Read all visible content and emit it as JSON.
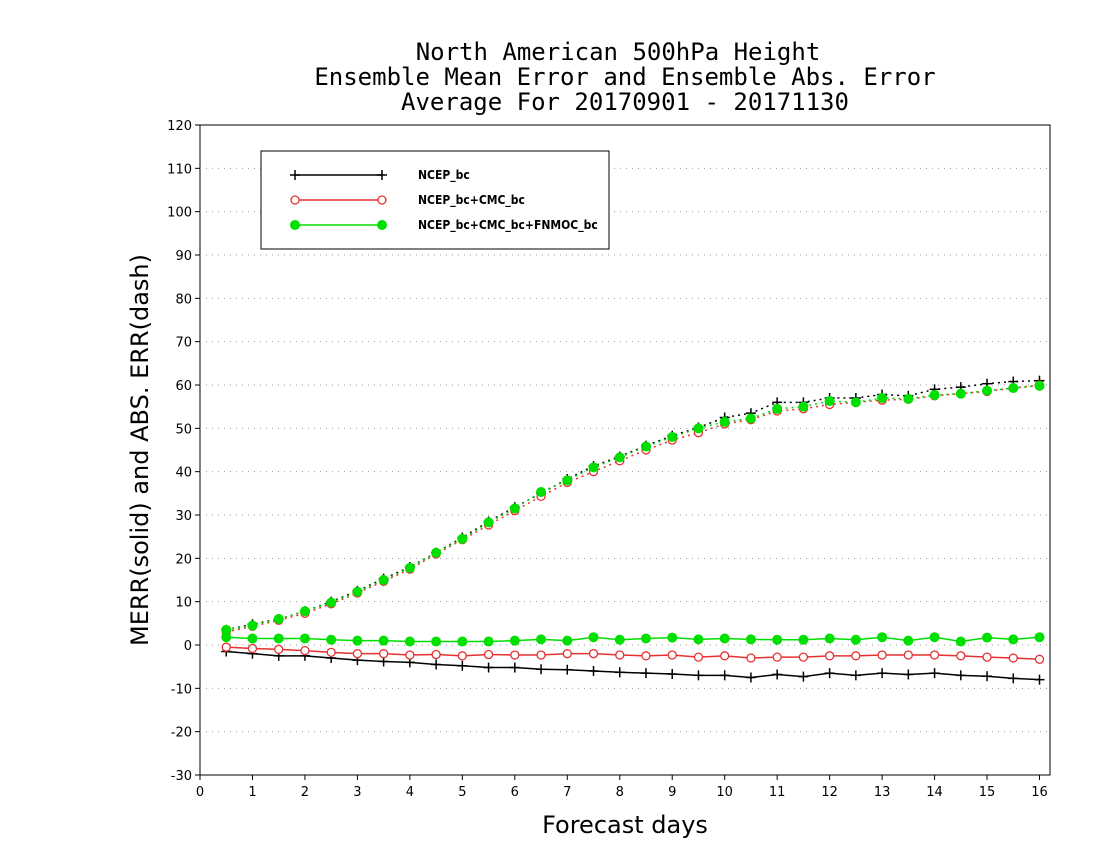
{
  "chart_data": {
    "type": "line",
    "title": [
      "North American 500hPa Height",
      "Ensemble Mean Error and Ensemble Abs. Error",
      "Average For 20170901 - 20171130"
    ],
    "xlabel": "Forecast days",
    "ylabel": "MERR(solid) and ABS. ERR(dash)",
    "xlim": [
      0,
      16.2
    ],
    "ylim": [
      -30,
      120
    ],
    "xticks": [
      0,
      1,
      2,
      3,
      4,
      5,
      6,
      7,
      8,
      9,
      10,
      11,
      12,
      13,
      14,
      15,
      16
    ],
    "yticks": [
      -30,
      -20,
      -10,
      0,
      10,
      20,
      30,
      40,
      50,
      60,
      70,
      80,
      90,
      100,
      110,
      120
    ],
    "grid": "horizontal dotted",
    "legend_position": "top-left",
    "x": [
      0.5,
      1,
      1.5,
      2,
      2.5,
      3,
      3.5,
      4,
      4.5,
      5,
      5.5,
      6,
      6.5,
      7,
      7.5,
      8,
      8.5,
      9,
      9.5,
      10,
      10.5,
      11,
      11.5,
      12,
      12.5,
      13,
      13.5,
      14,
      14.5,
      15,
      15.5,
      16
    ],
    "series": [
      {
        "name": "NCEP_bc",
        "color": "#000000",
        "marker": "plus",
        "merr": [
          -1.5,
          -2,
          -2.5,
          -2.5,
          -3,
          -3.5,
          -3.8,
          -4,
          -4.5,
          -4.8,
          -5.2,
          -5.2,
          -5.6,
          -5.7,
          -6,
          -6.3,
          -6.5,
          -6.7,
          -7,
          -7,
          -7.5,
          -6.8,
          -7.3,
          -6.5,
          -7,
          -6.5,
          -6.8,
          -6.5,
          -7,
          -7.2,
          -7.7,
          -8
        ],
        "abs_err": [
          3.5,
          4.8,
          6,
          7.8,
          10,
          12.5,
          15.3,
          18,
          21.3,
          24.8,
          28.5,
          31.8,
          35,
          38.3,
          41.3,
          43.5,
          46,
          48.3,
          50.2,
          52.5,
          53.5,
          56,
          56,
          57,
          57,
          57.8,
          57.5,
          59,
          59.5,
          60.3,
          60.8,
          61
        ]
      },
      {
        "name": "NCEP_bc+CMC_bc",
        "color": "#e83030",
        "marker": "open-circle",
        "merr": [
          -0.5,
          -0.8,
          -1,
          -1.3,
          -1.7,
          -2,
          -2,
          -2.3,
          -2.2,
          -2.5,
          -2.2,
          -2.3,
          -2.3,
          -2,
          -2,
          -2.3,
          -2.5,
          -2.3,
          -2.8,
          -2.5,
          -3,
          -2.8,
          -2.8,
          -2.5,
          -2.5,
          -2.3,
          -2.3,
          -2.3,
          -2.5,
          -2.8,
          -3,
          -3.3
        ],
        "abs_err": [
          3,
          4.3,
          5.7,
          7.3,
          9.5,
          12,
          14.7,
          17.5,
          21,
          24.3,
          27.7,
          31,
          34.3,
          37.5,
          40,
          42.5,
          45,
          47.3,
          49,
          51,
          52,
          54,
          54.5,
          55.5,
          56,
          56.5,
          56.7,
          57.5,
          58,
          58.5,
          59.3,
          60
        ]
      },
      {
        "name": "NCEP_bc+CMC_bc+FNMOC_bc",
        "color": "#00e000",
        "marker": "filled-circle",
        "merr": [
          1.8,
          1.5,
          1.5,
          1.5,
          1.2,
          1,
          1,
          0.8,
          0.8,
          0.8,
          0.8,
          1,
          1.3,
          1,
          1.8,
          1.2,
          1.5,
          1.7,
          1.3,
          1.5,
          1.3,
          1.2,
          1.2,
          1.5,
          1.2,
          1.8,
          1,
          1.8,
          0.8,
          1.7,
          1.3,
          1.8
        ],
        "abs_err": [
          3.5,
          4.5,
          6,
          7.8,
          9.8,
          12.3,
          15,
          17.8,
          21.3,
          24.5,
          28.3,
          31.5,
          35.3,
          38,
          41,
          43.3,
          45.8,
          48,
          50,
          51.5,
          52.3,
          54.5,
          55,
          56.3,
          56,
          57,
          56.8,
          57.7,
          58,
          58.7,
          59.3,
          59.8
        ]
      }
    ]
  }
}
